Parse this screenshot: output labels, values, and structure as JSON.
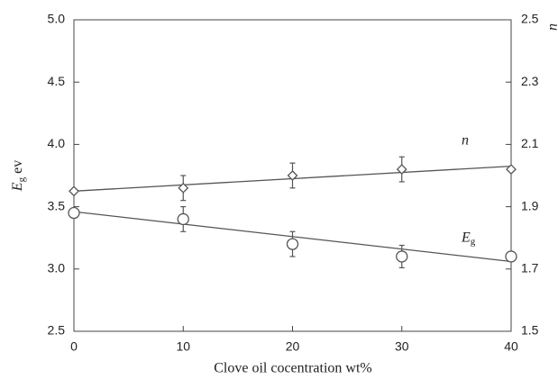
{
  "chart_data": {
    "type": "scatter",
    "xlabel": "Clove oil cocentration wt%",
    "ylabel": {
      "main": "E",
      "sub": "g",
      "rest": " ev"
    },
    "y2label": "n",
    "xlim": [
      0,
      40
    ],
    "xticks": [
      0,
      10,
      20,
      30,
      40
    ],
    "ylim": [
      2.5,
      5.0
    ],
    "yticks": [
      2.5,
      {
        "value": 3,
        "label": "3.0"
      },
      3.5,
      {
        "value": 4,
        "label": "4.0"
      },
      4.5,
      {
        "value": 5,
        "label": "5.0"
      }
    ],
    "y2lim": [
      1.5,
      2.5
    ],
    "y2ticks": [
      1.5,
      1.7,
      1.9,
      2.1,
      2.3,
      2.5
    ],
    "series": [
      {
        "marker": "circle",
        "color": "#555555",
        "x": [
          0,
          10,
          20,
          30,
          40
        ],
        "values": [
          3.45,
          3.4,
          3.2,
          3.1,
          3.1
        ],
        "errors": [
          null,
          0.1,
          0.1,
          0.09,
          null
        ],
        "fit_x": [
          0,
          40
        ],
        "fit_values": [
          3.46,
          3.06
        ],
        "annotation": {
          "main": "E",
          "sub": "g"
        }
      },
      {
        "marker": "diamond",
        "color": "#555555",
        "axis": "y2",
        "x": [
          0,
          10,
          20,
          30,
          40
        ],
        "values": [
          1.95,
          1.96,
          2.0,
          2.02,
          2.02
        ],
        "errors": [
          null,
          0.04,
          0.04,
          0.04,
          null
        ],
        "fit_x": [
          0,
          40
        ],
        "fit_values": [
          1.95,
          2.03
        ],
        "annotation": {
          "main": "n"
        }
      }
    ]
  }
}
